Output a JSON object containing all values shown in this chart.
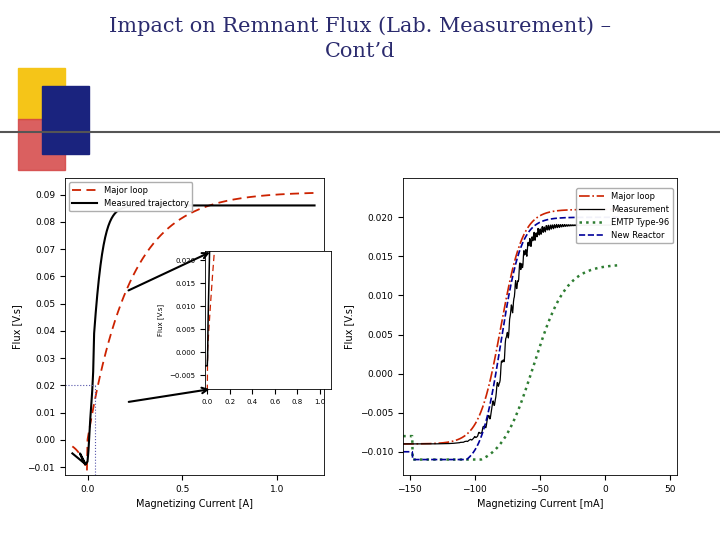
{
  "title_line1": "Impact on Remnant Flux (Lab. Measurement) –",
  "title_line2": "Cont’d",
  "title_color": "#2B2B6E",
  "title_fontsize": 15,
  "background_color": "#FFFFFF",
  "left_chart": {
    "xlabel": "Magnetizing Current [A]",
    "ylabel": "Flux [V.s]",
    "xlim": [
      -0.12,
      1.25
    ],
    "ylim": [
      -0.013,
      0.096
    ],
    "xticks": [
      0,
      0.5,
      1.0
    ],
    "yticks": [
      -0.01,
      0,
      0.01,
      0.02,
      0.03,
      0.04,
      0.05,
      0.06,
      0.07,
      0.08,
      0.09
    ]
  },
  "right_chart": {
    "xlabel": "Magnetizing Current [mA]",
    "ylabel": "Flux [V.s]",
    "xlim": [
      -155,
      55
    ],
    "ylim": [
      -0.013,
      0.025
    ],
    "xticks": [
      -150,
      -100,
      -50,
      0,
      50
    ],
    "yticks": [
      -0.01,
      -0.005,
      0,
      0.005,
      0.01,
      0.015,
      0.02
    ]
  },
  "inset_chart": {
    "xlim": [
      -0.02,
      1.1
    ],
    "ylim": [
      -0.008,
      0.022
    ],
    "yticks": [
      -0.005,
      0,
      0.005,
      0.01,
      0.015,
      0.02
    ],
    "ylabel": "Flux [V.s]"
  },
  "deco_colors": {
    "yellow": "#F5C518",
    "red_pink": "#D44444",
    "blue_dark": "#1A237E",
    "blue_medium": "#4A6FA5",
    "gray_line": "#555555"
  }
}
